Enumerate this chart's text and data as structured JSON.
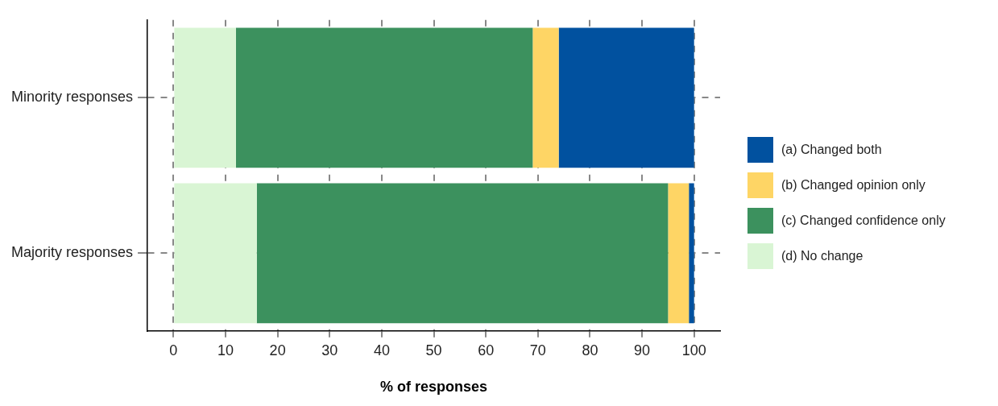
{
  "chart_data": {
    "type": "bar",
    "orientation": "horizontal",
    "stacked": true,
    "categories": [
      "Minority responses",
      "Majority responses"
    ],
    "series": [
      {
        "name": "(d) No change",
        "color": "#d9f5d4",
        "values": [
          12,
          16
        ]
      },
      {
        "name": "(c) Changed confidence only",
        "color": "#3c915e",
        "values": [
          57,
          79
        ]
      },
      {
        "name": "(b) Changed opinion only",
        "color": "#fed565",
        "values": [
          5,
          4
        ]
      },
      {
        "name": "(a) Changed both",
        "color": "#01519f",
        "values": [
          26,
          1
        ]
      }
    ],
    "xlabel": "% of responses",
    "xlim": [
      -5,
      105
    ],
    "xticks": [
      0,
      10,
      20,
      30,
      40,
      50,
      60,
      70,
      80,
      90,
      100
    ],
    "grid": true,
    "legend": "right"
  }
}
